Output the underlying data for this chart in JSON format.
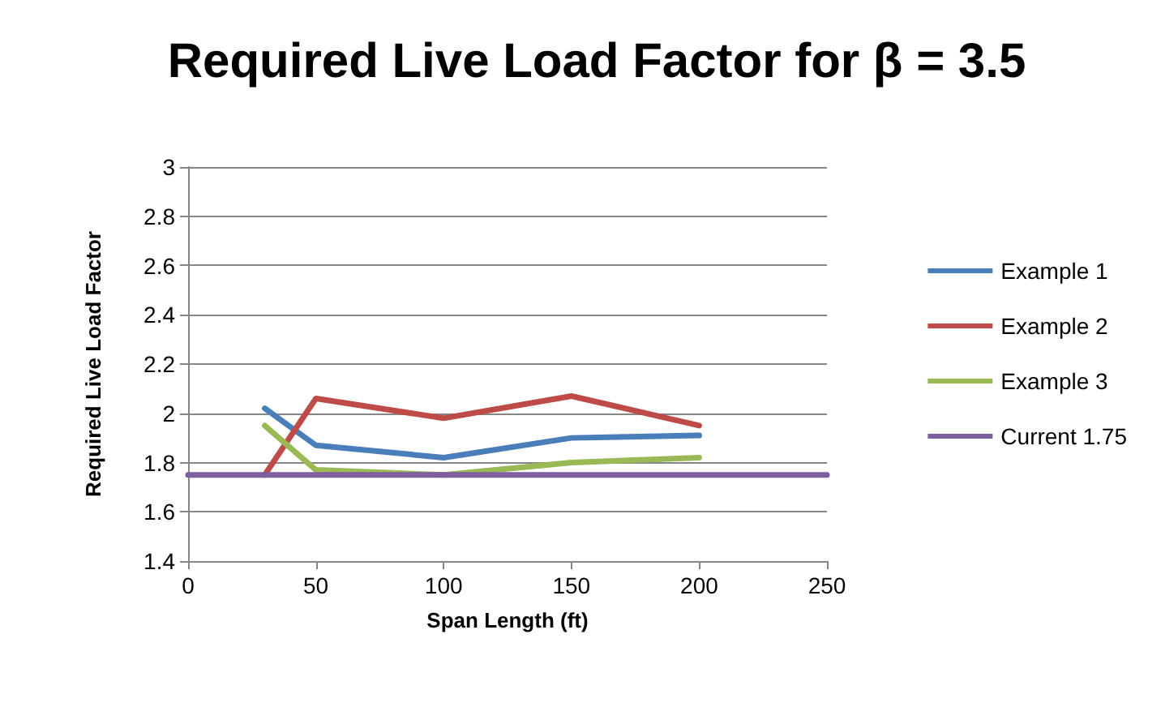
{
  "chart_data": {
    "type": "line",
    "title": "Required Live Load Factor for β = 3.5",
    "xlabel": "Span Length (ft)",
    "ylabel": "Required Live Load Factor",
    "x": [
      30,
      50,
      100,
      150,
      200
    ],
    "series": [
      {
        "name": "Example 1",
        "color": "#4a7ebb",
        "values": [
          2.02,
          1.87,
          1.82,
          1.9,
          1.91
        ]
      },
      {
        "name": "Example 2",
        "color": "#be4b48",
        "values": [
          1.75,
          2.06,
          1.98,
          2.07,
          1.95
        ]
      },
      {
        "name": "Example 3",
        "color": "#98b954",
        "values": [
          1.95,
          1.77,
          1.75,
          1.8,
          1.82
        ]
      },
      {
        "name": "Current 1.75",
        "color": "#7d5fa0",
        "x": [
          0,
          250
        ],
        "values": [
          1.75,
          1.75
        ]
      }
    ],
    "xlim": [
      0,
      250
    ],
    "xticks": [
      0,
      50,
      100,
      150,
      200,
      250
    ],
    "ylim": [
      1.4,
      3
    ],
    "yticks": [
      1.4,
      1.6,
      1.8,
      2,
      2.2,
      2.4,
      2.6,
      2.8,
      3
    ],
    "grid": "y",
    "legend": "right",
    "marker": "none",
    "line_style": "solid"
  }
}
